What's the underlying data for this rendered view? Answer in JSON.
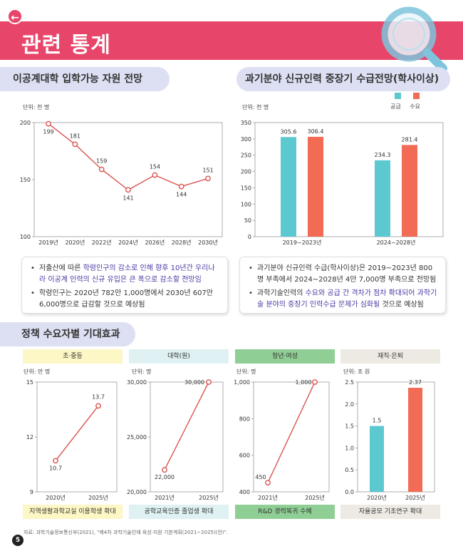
{
  "header": {
    "title": "관련 통계"
  },
  "colors": {
    "accent": "#e8456b",
    "supply": "#5cc8cf",
    "demand": "#f26b55",
    "line": "#d9534f",
    "pill": "#dde0f3",
    "highlight": "#4a3aa3"
  },
  "section1": {
    "title": "이공계대학 입학가능 자원 전망",
    "unit": "단위: 천 명",
    "notes": [
      {
        "pre": "저출산에 따른 ",
        "hl": "학령인구의 감소로 인해 향후 10년간 우리나라 이공계 인력의 신규 유입은 큰 폭으로 감소할 전망임",
        "post": ""
      },
      {
        "pre": "학령인구는 2020년 782만 1,000명에서 2030년 607만 6,000명으로 급감할 것으로 예상됨",
        "hl": "",
        "post": ""
      }
    ]
  },
  "section2": {
    "title": "과기분야 신규인력 중장기 수급전망(학사이상)",
    "unit": "단위: 천 명",
    "legend": [
      "공급",
      "수요"
    ],
    "notes": [
      {
        "pre": "과기분야 신규인력 수급(학사이상)은 2019~2023년 800명 부족에서 2024~2028년 4만 7,000명 부족으로 전망됨",
        "hl": "",
        "post": ""
      },
      {
        "pre": "과학기술인력의 ",
        "hl": "수요와 공급 간 격차가 점차 확대되어 과학기술 분야의 중장기 인력수급 문제가 심화될",
        "post": " 것으로 예상됨"
      }
    ]
  },
  "section3": {
    "title": "정책 수요자별 기대효과",
    "panels": [
      {
        "header": "초·중등",
        "unit": "단위: 만 명",
        "footer": "지역생활과학교실 이용학생 확대"
      },
      {
        "header": "대학(원)",
        "unit": "단위: 명",
        "footer": "공학교육인증 졸업생 확대"
      },
      {
        "header": "청년·여성",
        "unit": "단위: 명",
        "footer": "R&D 경력복귀 수혜"
      },
      {
        "header": "재직·은퇴",
        "unit": "단위: 조 원",
        "footer": "자율공모 기초연구 확대"
      }
    ]
  },
  "chart_data": [
    {
      "type": "line",
      "x": [
        "2019년",
        "2020년",
        "2022년",
        "2024년",
        "2026년",
        "2028년",
        "2030년"
      ],
      "series": [
        {
          "values": [
            199,
            181,
            159,
            141,
            154,
            144,
            151
          ]
        }
      ],
      "ylim": [
        100,
        200
      ],
      "yticks": [
        100,
        150,
        200
      ]
    },
    {
      "type": "bar",
      "categories": [
        "2019~2023년",
        "2024~2028년"
      ],
      "series": [
        {
          "name": "공급",
          "values": [
            305.6,
            234.3
          ]
        },
        {
          "name": "수요",
          "values": [
            306.4,
            281.4
          ]
        }
      ],
      "ylim": [
        0,
        350
      ],
      "yticks": [
        0,
        50,
        100,
        150,
        200,
        250,
        300,
        350
      ]
    },
    {
      "type": "line",
      "x": [
        "2020년",
        "2025년"
      ],
      "series": [
        {
          "values": [
            10.7,
            13.7
          ]
        }
      ],
      "ylim": [
        9,
        15
      ],
      "yticks": [
        "9",
        "12",
        "15"
      ]
    },
    {
      "type": "line",
      "x": [
        "2021년",
        "2025년"
      ],
      "series": [
        {
          "values": [
            22000,
            30000
          ],
          "labels": [
            "22,000",
            "30,000"
          ]
        }
      ],
      "ylim": [
        20000,
        30000
      ],
      "yticks": [
        "20,000",
        "25,000",
        "30,000"
      ]
    },
    {
      "type": "line",
      "x": [
        "2021년",
        "2025년"
      ],
      "series": [
        {
          "values": [
            450,
            1000
          ],
          "labels": [
            "450",
            "1,000"
          ]
        }
      ],
      "ylim": [
        400,
        1000
      ],
      "yticks": [
        "400",
        "600",
        "800",
        "1,000"
      ]
    },
    {
      "type": "bar",
      "categories": [
        "2020년",
        "2025년"
      ],
      "series": [
        {
          "values": [
            1.5,
            2.37
          ]
        }
      ],
      "colors": [
        "#5cc8cf",
        "#f26b55"
      ],
      "ylim": [
        0,
        2.5
      ],
      "yticks": [
        "0.0",
        "0.5",
        "1.0",
        "1.5",
        "2.0",
        "2.5"
      ]
    }
  ],
  "footer": {
    "source": "자료: 과학기술정보통신부(2021), \"제4차 과학기술인재 육성·지원 기본계획(2021~2025)(안)\".",
    "page": "5"
  }
}
